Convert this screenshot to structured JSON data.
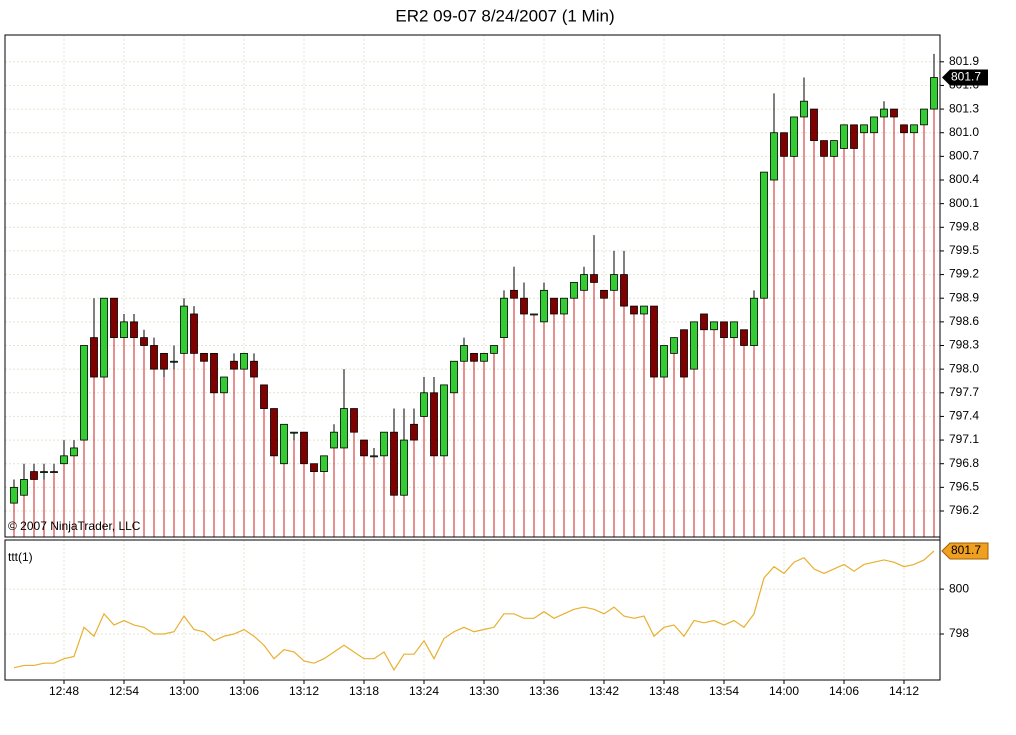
{
  "chart_data": [
    {
      "type": "candlestick",
      "title": "ER2 09-07  8/24/2007  (1 Min)",
      "annotation": "© 2007 NinjaTrader, LLC",
      "categories": [
        null,
        null,
        null,
        null,
        null,
        "12:48",
        null,
        null,
        null,
        null,
        null,
        "12:54",
        null,
        null,
        null,
        null,
        null,
        "13:00",
        null,
        null,
        null,
        null,
        null,
        "13:06",
        null,
        null,
        null,
        null,
        null,
        "13:12",
        null,
        null,
        null,
        null,
        null,
        "13:18",
        null,
        null,
        null,
        null,
        null,
        "13:24",
        null,
        null,
        null,
        null,
        null,
        "13:30",
        null,
        null,
        null,
        null,
        null,
        "13:36",
        null,
        null,
        null,
        null,
        null,
        "13:42",
        null,
        null,
        null,
        null,
        null,
        "13:48",
        null,
        null,
        null,
        null,
        null,
        "13:54",
        null,
        null,
        null,
        null,
        null,
        "14:00",
        null,
        null,
        null,
        null,
        null,
        "14:06",
        null,
        null,
        null,
        null,
        null,
        "14:12",
        null,
        null,
        null
      ],
      "open": [
        796.3,
        796.4,
        796.7,
        796.7,
        796.7,
        796.8,
        796.9,
        797.1,
        798.4,
        797.9,
        798.9,
        798.4,
        798.6,
        798.4,
        798.3,
        798.2,
        798.1,
        798.2,
        798.7,
        798.2,
        798.2,
        797.7,
        798.1,
        798.0,
        798.1,
        797.8,
        797.5,
        796.8,
        797.2,
        797.2,
        796.8,
        796.7,
        797.0,
        797.0,
        797.5,
        797.1,
        796.9,
        796.9,
        797.2,
        796.4,
        797.3,
        797.4,
        797.7,
        796.9,
        797.7,
        798.1,
        798.2,
        798.1,
        798.2,
        798.4,
        799.0,
        798.9,
        798.7,
        798.6,
        798.9,
        798.7,
        798.9,
        799.0,
        799.2,
        799.0,
        799.0,
        799.2,
        798.8,
        798.7,
        798.8,
        797.9,
        798.2,
        798.5,
        798.0,
        798.7,
        798.5,
        798.6,
        798.4,
        798.5,
        798.3,
        798.9,
        800.4,
        801.0,
        800.7,
        801.2,
        801.3,
        800.9,
        800.7,
        800.8,
        801.1,
        801.0,
        801.0,
        801.2,
        801.3,
        801.1,
        801.0,
        801.1,
        801.3
      ],
      "high": [
        796.6,
        796.8,
        796.8,
        796.8,
        796.8,
        797.1,
        797.1,
        798.3,
        798.9,
        798.9,
        798.9,
        798.7,
        798.7,
        798.5,
        798.4,
        798.2,
        798.3,
        798.9,
        798.8,
        798.2,
        798.2,
        797.9,
        798.2,
        798.2,
        798.2,
        797.8,
        797.5,
        797.3,
        797.2,
        797.2,
        796.8,
        796.9,
        797.3,
        798.0,
        797.5,
        797.1,
        797.0,
        797.2,
        797.5,
        797.5,
        797.5,
        797.9,
        797.9,
        797.8,
        798.1,
        798.4,
        798.2,
        798.2,
        798.3,
        799.0,
        799.3,
        799.1,
        798.7,
        799.1,
        798.9,
        798.9,
        799.1,
        799.3,
        799.7,
        799.0,
        799.5,
        799.5,
        798.8,
        798.8,
        798.8,
        798.3,
        798.4,
        798.5,
        798.6,
        798.7,
        798.6,
        798.6,
        798.6,
        798.5,
        799.0,
        800.5,
        801.5,
        801.0,
        801.2,
        801.7,
        801.3,
        800.9,
        800.9,
        801.1,
        801.1,
        801.1,
        801.2,
        801.4,
        801.3,
        801.1,
        801.1,
        801.3,
        802.0
      ],
      "low": [
        796.3,
        796.4,
        796.6,
        796.6,
        796.7,
        796.8,
        796.9,
        797.1,
        797.9,
        797.9,
        798.4,
        798.4,
        798.4,
        798.3,
        798.0,
        797.9,
        798.0,
        798.2,
        798.2,
        798.1,
        797.7,
        797.7,
        798.0,
        798.0,
        797.9,
        797.5,
        796.9,
        796.8,
        797.1,
        796.8,
        796.7,
        796.7,
        797.0,
        797.0,
        797.2,
        796.9,
        796.9,
        796.9,
        796.4,
        796.4,
        797.1,
        797.4,
        796.9,
        796.9,
        797.7,
        798.1,
        798.1,
        798.1,
        798.2,
        798.4,
        798.9,
        798.7,
        798.7,
        798.6,
        798.7,
        798.7,
        798.9,
        799.0,
        799.1,
        798.9,
        799.0,
        798.8,
        798.7,
        798.7,
        797.9,
        797.9,
        798.2,
        797.9,
        798.0,
        798.5,
        798.5,
        798.4,
        798.4,
        798.3,
        798.3,
        798.9,
        800.4,
        800.7,
        800.7,
        801.2,
        800.9,
        800.7,
        800.7,
        800.8,
        800.8,
        801.0,
        801.0,
        801.2,
        801.2,
        801.0,
        801.0,
        801.1,
        801.3
      ],
      "close": [
        796.5,
        796.6,
        796.6,
        796.7,
        796.7,
        796.9,
        797.0,
        798.3,
        797.9,
        798.9,
        798.4,
        798.6,
        798.4,
        798.3,
        798.0,
        798.0,
        798.1,
        798.8,
        798.2,
        798.1,
        797.7,
        797.9,
        798.0,
        798.2,
        797.9,
        797.5,
        796.9,
        797.3,
        797.2,
        796.8,
        796.7,
        796.9,
        797.2,
        797.5,
        797.2,
        796.9,
        796.9,
        797.2,
        796.4,
        797.1,
        797.1,
        797.7,
        796.9,
        797.8,
        798.1,
        798.3,
        798.1,
        798.2,
        798.3,
        798.9,
        798.9,
        798.7,
        798.7,
        799.0,
        798.7,
        798.9,
        799.1,
        799.2,
        799.1,
        798.9,
        799.2,
        798.8,
        798.7,
        798.8,
        797.9,
        798.3,
        798.4,
        797.9,
        798.6,
        798.5,
        798.6,
        798.4,
        798.6,
        798.3,
        798.9,
        800.5,
        801.0,
        800.7,
        801.2,
        801.4,
        800.9,
        800.7,
        800.9,
        801.1,
        800.8,
        801.1,
        801.2,
        801.3,
        801.2,
        801.0,
        801.1,
        801.3,
        801.7
      ],
      "up_color": "#33cc33",
      "down_color": "#800000",
      "ylim": [
        795.87,
        802.24
      ],
      "yticks": [
        801.9,
        801.6,
        801.3,
        {
          "value": 801,
          "label": "801.0"
        },
        800.7,
        800.4,
        800.1,
        799.8,
        799.5,
        799.2,
        798.9,
        798.6,
        798.3,
        {
          "value": 798,
          "label": "798.0"
        },
        797.7,
        797.4,
        797.1,
        796.8,
        796.5,
        796.2
      ],
      "grid": true
    },
    {
      "type": "line",
      "title": "ttt(1)",
      "series": [
        {
          "color": "#e8b030",
          "values": [
            796.5,
            796.6,
            796.6,
            796.7,
            796.7,
            796.9,
            797.0,
            798.3,
            797.9,
            798.9,
            798.4,
            798.6,
            798.4,
            798.3,
            798.0,
            798.0,
            798.1,
            798.8,
            798.2,
            798.1,
            797.7,
            797.9,
            798.0,
            798.2,
            797.9,
            797.5,
            796.9,
            797.3,
            797.2,
            796.8,
            796.7,
            796.9,
            797.2,
            797.5,
            797.2,
            796.9,
            796.9,
            797.2,
            796.4,
            797.1,
            797.1,
            797.7,
            796.9,
            797.8,
            798.1,
            798.3,
            798.1,
            798.2,
            798.3,
            798.9,
            798.9,
            798.7,
            798.7,
            799.0,
            798.7,
            798.9,
            799.1,
            799.2,
            799.1,
            798.9,
            799.2,
            798.8,
            798.7,
            798.8,
            797.9,
            798.3,
            798.4,
            797.9,
            798.6,
            798.5,
            798.6,
            798.4,
            798.6,
            798.3,
            798.9,
            800.5,
            801.0,
            800.7,
            801.2,
            801.4,
            800.9,
            800.7,
            800.9,
            801.1,
            800.8,
            801.1,
            801.2,
            801.3,
            801.2,
            801.0,
            801.1,
            801.3,
            801.7
          ]
        }
      ],
      "ylim": [
        795.95,
        802.19
      ],
      "yticks": [
        800,
        798
      ],
      "grid": true
    }
  ]
}
